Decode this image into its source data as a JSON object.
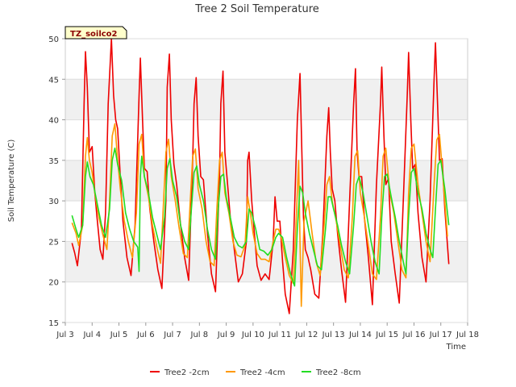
{
  "chart_data": {
    "type": "line",
    "title": "Tree 2 Soil Temperature",
    "xlabel": "Time",
    "ylabel": "Soil Temperature (C)",
    "badge": "TZ_soilco2",
    "xlim": [
      3,
      18
    ],
    "ylim": [
      15,
      50
    ],
    "x_ticks": [
      {
        "v": 3,
        "label": "Jul 3"
      },
      {
        "v": 4,
        "label": "Jul 4"
      },
      {
        "v": 5,
        "label": "Jul 5"
      },
      {
        "v": 6,
        "label": "Jul 6"
      },
      {
        "v": 7,
        "label": "Jul 7"
      },
      {
        "v": 8,
        "label": "Jul 8"
      },
      {
        "v": 9,
        "label": "Jul 9"
      },
      {
        "v": 10,
        "label": "Jul 10"
      },
      {
        "v": 11,
        "label": "Jul 11"
      },
      {
        "v": 12,
        "label": "Jul 12"
      },
      {
        "v": 13,
        "label": "Jul 13"
      },
      {
        "v": 14,
        "label": "Jul 14"
      },
      {
        "v": 15,
        "label": "Jul 15"
      },
      {
        "v": 16,
        "label": "Jul 16"
      },
      {
        "v": 17,
        "label": "Jul 17"
      },
      {
        "v": 18,
        "label": "Jul 18"
      }
    ],
    "y_ticks": [
      15,
      20,
      25,
      30,
      35,
      40,
      45,
      50
    ],
    "grid": true,
    "legend_position": "bottom",
    "series": [
      {
        "name": "Tree2 -2cm",
        "color": "#ee0000",
        "x": [
          3.25,
          3.35,
          3.45,
          3.6,
          3.7,
          3.75,
          3.82,
          3.9,
          4.0,
          4.1,
          4.18,
          4.3,
          4.4,
          4.5,
          4.6,
          4.72,
          4.8,
          4.88,
          4.95,
          5.05,
          5.15,
          5.3,
          5.45,
          5.6,
          5.75,
          5.8,
          5.88,
          5.95,
          6.05,
          6.15,
          6.3,
          6.45,
          6.6,
          6.75,
          6.8,
          6.88,
          6.95,
          7.05,
          7.15,
          7.3,
          7.45,
          7.6,
          7.75,
          7.8,
          7.88,
          7.95,
          8.05,
          8.15,
          8.3,
          8.45,
          8.6,
          8.75,
          8.8,
          8.88,
          8.95,
          9.05,
          9.15,
          9.3,
          9.45,
          9.6,
          9.75,
          9.8,
          9.85,
          9.95,
          10.05,
          10.15,
          10.3,
          10.45,
          10.6,
          10.75,
          10.82,
          10.9,
          11.0,
          11.1,
          11.2,
          11.35,
          11.5,
          11.65,
          11.75,
          11.82,
          11.88,
          11.95,
          12.05,
          12.15,
          12.3,
          12.45,
          12.6,
          12.75,
          12.82,
          12.88,
          12.95,
          13.05,
          13.15,
          13.3,
          13.45,
          13.6,
          13.75,
          13.82,
          13.88,
          13.95,
          14.05,
          14.15,
          14.3,
          14.45,
          14.6,
          14.75,
          14.8,
          14.88,
          14.95,
          15.05,
          15.15,
          15.3,
          15.45,
          15.6,
          15.75,
          15.8,
          15.88,
          15.95,
          16.05,
          16.15,
          16.3,
          16.45,
          16.6,
          16.75,
          16.8,
          16.88,
          16.95,
          17.05,
          17.15,
          17.3
        ],
        "y": [
          24.8,
          23.6,
          22.0,
          26.5,
          42.0,
          48.4,
          44.0,
          36.0,
          36.7,
          31.0,
          28.0,
          24.0,
          22.8,
          28.5,
          42.0,
          50.0,
          43.0,
          40.0,
          38.9,
          33.0,
          27.5,
          23.0,
          20.8,
          27.0,
          43.0,
          47.6,
          40.0,
          34.0,
          33.6,
          29.0,
          25.0,
          21.5,
          19.2,
          30.0,
          44.0,
          48.1,
          40.0,
          34.5,
          32.0,
          27.0,
          23.0,
          20.2,
          35.0,
          42.0,
          45.2,
          38.0,
          33.0,
          32.6,
          26.0,
          21.0,
          18.8,
          33.0,
          42.0,
          46.0,
          36.0,
          32.0,
          28.0,
          24.0,
          20.0,
          21.0,
          25.0,
          35.0,
          36.0,
          30.0,
          26.0,
          22.0,
          20.2,
          21.0,
          20.3,
          25.0,
          30.5,
          27.5,
          27.5,
          22.5,
          18.5,
          16.1,
          24.0,
          40.0,
          45.7,
          36.0,
          28.0,
          24.0,
          23.0,
          21.5,
          18.5,
          18.0,
          26.0,
          38.0,
          41.5,
          36.0,
          31.5,
          30.0,
          26.0,
          21.5,
          17.5,
          30.0,
          42.0,
          46.3,
          36.0,
          33.0,
          33.0,
          28.0,
          23.0,
          17.2,
          32.0,
          42.0,
          46.5,
          38.0,
          32.0,
          32.8,
          25.0,
          21.0,
          17.4,
          30.0,
          43.0,
          48.3,
          40.0,
          34.0,
          34.5,
          28.5,
          23.0,
          20.0,
          30.0,
          45.0,
          49.5,
          42.0,
          35.0,
          35.2,
          29.0,
          22.2
        ]
      },
      {
        "name": "Tree2 -4cm",
        "color": "#ff9900",
        "x": [
          3.25,
          3.4,
          3.5,
          3.65,
          3.75,
          3.82,
          3.9,
          4.0,
          4.1,
          4.25,
          4.4,
          4.55,
          4.65,
          4.75,
          4.85,
          4.95,
          5.05,
          5.2,
          5.35,
          5.5,
          5.65,
          5.75,
          5.85,
          5.95,
          6.1,
          6.25,
          6.4,
          6.55,
          6.65,
          6.75,
          6.85,
          6.95,
          7.1,
          7.25,
          7.4,
          7.55,
          7.65,
          7.75,
          7.85,
          7.95,
          8.1,
          8.25,
          8.4,
          8.55,
          8.65,
          8.75,
          8.85,
          8.95,
          9.1,
          9.25,
          9.4,
          9.55,
          9.7,
          9.8,
          9.9,
          10.0,
          10.15,
          10.3,
          10.45,
          10.6,
          10.75,
          10.85,
          10.95,
          11.05,
          11.2,
          11.35,
          11.5,
          11.6,
          11.7,
          11.75,
          11.8,
          11.9,
          12.05,
          12.2,
          12.35,
          12.5,
          12.65,
          12.75,
          12.85,
          12.95,
          13.1,
          13.25,
          13.4,
          13.55,
          13.7,
          13.8,
          13.9,
          14.0,
          14.15,
          14.3,
          14.45,
          14.6,
          14.75,
          14.85,
          14.95,
          15.1,
          15.25,
          15.4,
          15.55,
          15.7,
          15.8,
          15.9,
          16.0,
          16.15,
          16.3,
          16.45,
          16.6,
          16.75,
          16.85,
          16.95,
          17.1,
          17.25
        ],
        "y": [
          27.3,
          26.0,
          24.5,
          27.0,
          35.5,
          37.8,
          35.0,
          33.5,
          31.0,
          28.0,
          25.8,
          24.0,
          30.0,
          38.0,
          39.5,
          35.0,
          31.5,
          27.5,
          25.0,
          23.0,
          28.5,
          37.0,
          38.2,
          33.0,
          30.5,
          27.0,
          24.5,
          22.3,
          29.0,
          36.0,
          37.6,
          33.0,
          30.0,
          26.5,
          23.5,
          23.0,
          29.5,
          35.5,
          36.4,
          31.5,
          29.0,
          25.0,
          22.5,
          22.0,
          29.0,
          35.0,
          36.0,
          31.0,
          28.5,
          25.0,
          23.3,
          23.1,
          24.5,
          30.5,
          28.5,
          26.0,
          23.5,
          22.8,
          22.8,
          22.5,
          25.0,
          26.5,
          26.5,
          25.5,
          23.0,
          20.8,
          19.8,
          27.0,
          35.0,
          25.0,
          17.0,
          27.5,
          30.0,
          26.0,
          22.5,
          20.8,
          27.0,
          32.0,
          33.0,
          30.0,
          27.5,
          24.5,
          21.5,
          20.5,
          28.0,
          35.5,
          36.2,
          31.0,
          28.0,
          24.5,
          21.0,
          20.3,
          28.0,
          35.5,
          36.5,
          31.0,
          28.5,
          25.0,
          21.5,
          20.5,
          31.0,
          36.5,
          37.0,
          32.0,
          28.5,
          25.0,
          22.5,
          32.0,
          37.5,
          38.2,
          32.0,
          25.6
        ]
      },
      {
        "name": "Tree2 -8cm",
        "color": "#22dd22",
        "x": [
          3.25,
          3.4,
          3.5,
          3.65,
          3.75,
          3.82,
          3.92,
          4.05,
          4.2,
          4.35,
          4.5,
          4.65,
          4.75,
          4.85,
          4.95,
          5.1,
          5.25,
          5.4,
          5.55,
          5.7,
          5.75,
          5.8,
          5.85,
          5.95,
          6.1,
          6.25,
          6.4,
          6.55,
          6.7,
          6.8,
          6.9,
          7.0,
          7.15,
          7.3,
          7.45,
          7.6,
          7.7,
          7.8,
          7.9,
          8.0,
          8.15,
          8.3,
          8.45,
          8.6,
          8.7,
          8.8,
          8.9,
          9.0,
          9.15,
          9.3,
          9.45,
          9.6,
          9.75,
          9.85,
          9.95,
          10.1,
          10.25,
          10.4,
          10.55,
          10.7,
          10.85,
          10.95,
          11.1,
          11.25,
          11.4,
          11.55,
          11.65,
          11.75,
          11.85,
          11.95,
          12.1,
          12.25,
          12.4,
          12.55,
          12.7,
          12.8,
          12.9,
          13.0,
          13.15,
          13.3,
          13.45,
          13.6,
          13.75,
          13.85,
          13.95,
          14.1,
          14.25,
          14.4,
          14.55,
          14.7,
          14.8,
          14.9,
          15.0,
          15.15,
          15.3,
          15.45,
          15.6,
          15.7,
          15.8,
          15.9,
          16.0,
          16.15,
          16.3,
          16.45,
          16.6,
          16.7,
          16.8,
          16.9,
          17.0,
          17.15,
          17.3
        ],
        "y": [
          28.2,
          26.5,
          25.5,
          27.0,
          33.0,
          34.8,
          33.0,
          32.0,
          29.5,
          27.0,
          25.5,
          29.0,
          35.0,
          36.5,
          34.5,
          32.5,
          28.5,
          26.5,
          25.0,
          24.3,
          21.3,
          33.0,
          35.5,
          33.0,
          31.0,
          28.0,
          26.0,
          24.0,
          28.0,
          34.0,
          35.2,
          32.5,
          30.5,
          27.0,
          25.0,
          24.0,
          29.0,
          33.5,
          34.3,
          32.0,
          30.0,
          26.5,
          24.0,
          22.8,
          29.0,
          33.0,
          33.3,
          30.5,
          28.0,
          25.5,
          24.5,
          24.2,
          25.0,
          29.0,
          28.5,
          26.5,
          24.0,
          23.8,
          23.3,
          24.0,
          25.5,
          26.0,
          25.5,
          23.0,
          21.0,
          19.5,
          26.5,
          31.8,
          31.0,
          28.5,
          26.0,
          24.0,
          22.0,
          21.5,
          26.5,
          30.5,
          30.5,
          29.0,
          27.0,
          24.5,
          22.5,
          21.0,
          27.0,
          32.0,
          33.0,
          31.0,
          28.0,
          25.0,
          22.5,
          21.0,
          28.0,
          33.0,
          33.3,
          30.5,
          28.0,
          25.0,
          22.5,
          21.0,
          28.0,
          33.5,
          34.0,
          31.0,
          29.0,
          26.0,
          24.0,
          23.0,
          29.0,
          34.5,
          35.0,
          31.5,
          27.0
        ]
      }
    ]
  }
}
